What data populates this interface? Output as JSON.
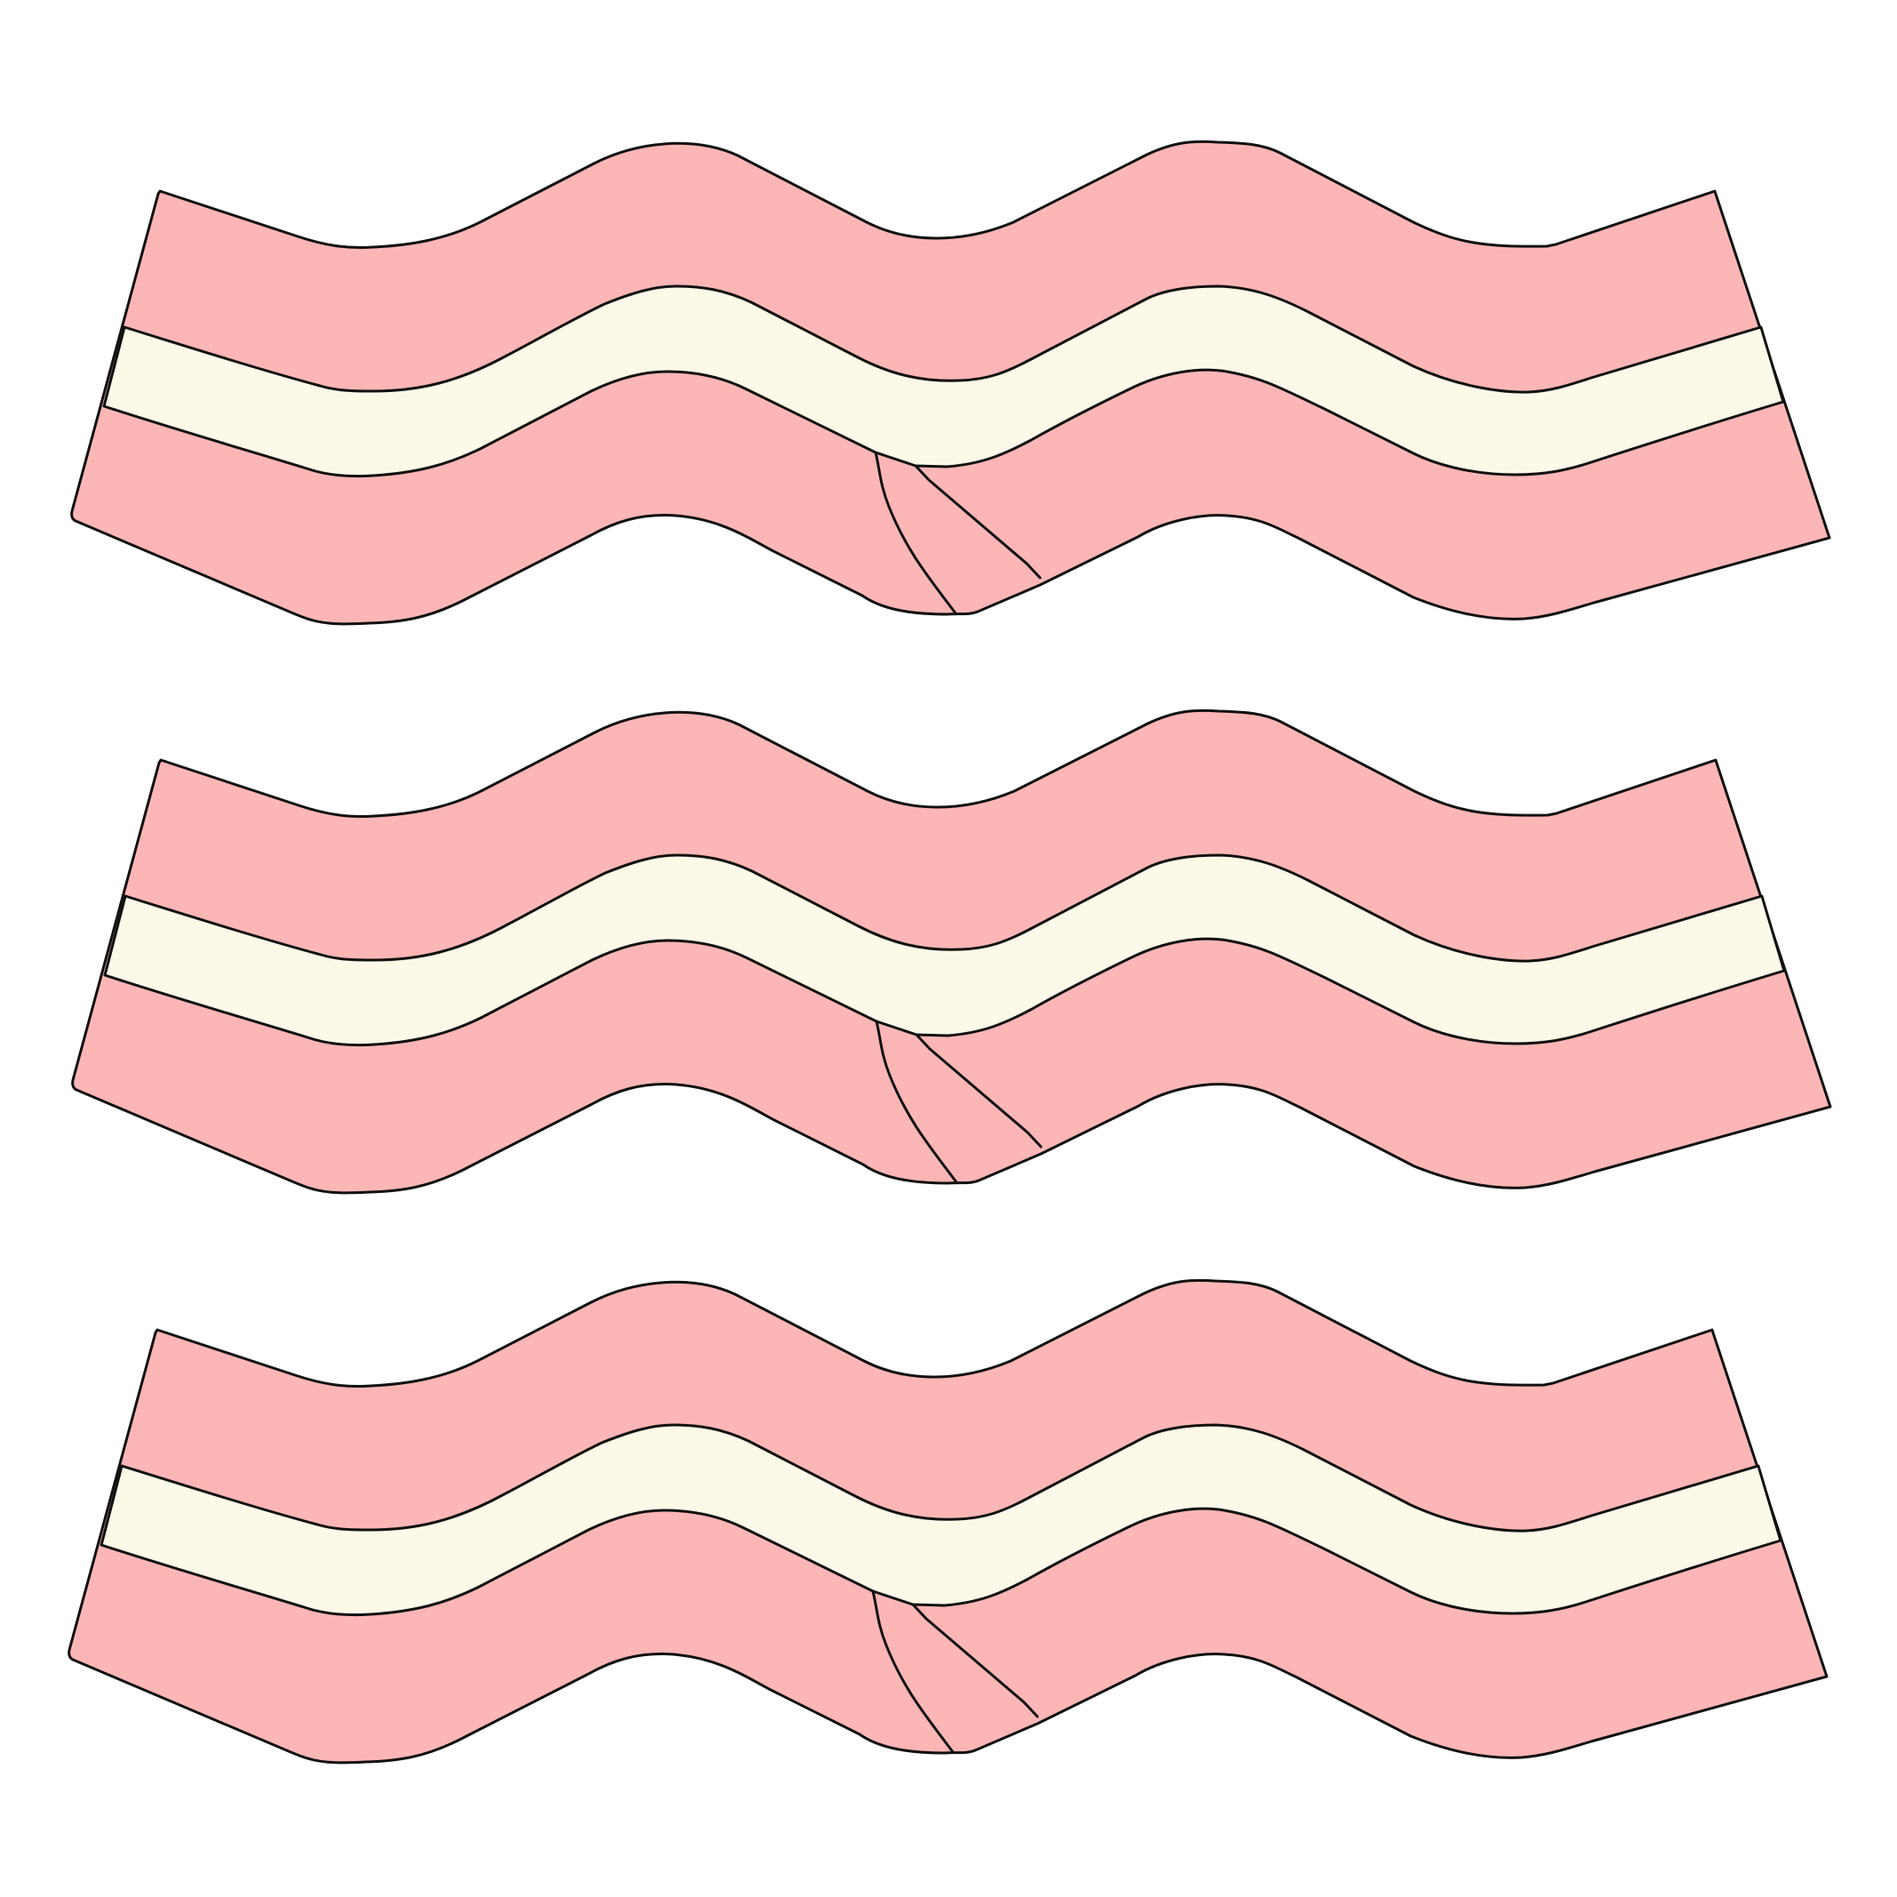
{
  "illustration": {
    "subject": "bacon-strips",
    "strip_count": 3,
    "colors": {
      "background": "#ffffff",
      "meat": "#fcb6b5",
      "fat": "#fdf9e9",
      "outline": "#111111"
    }
  }
}
